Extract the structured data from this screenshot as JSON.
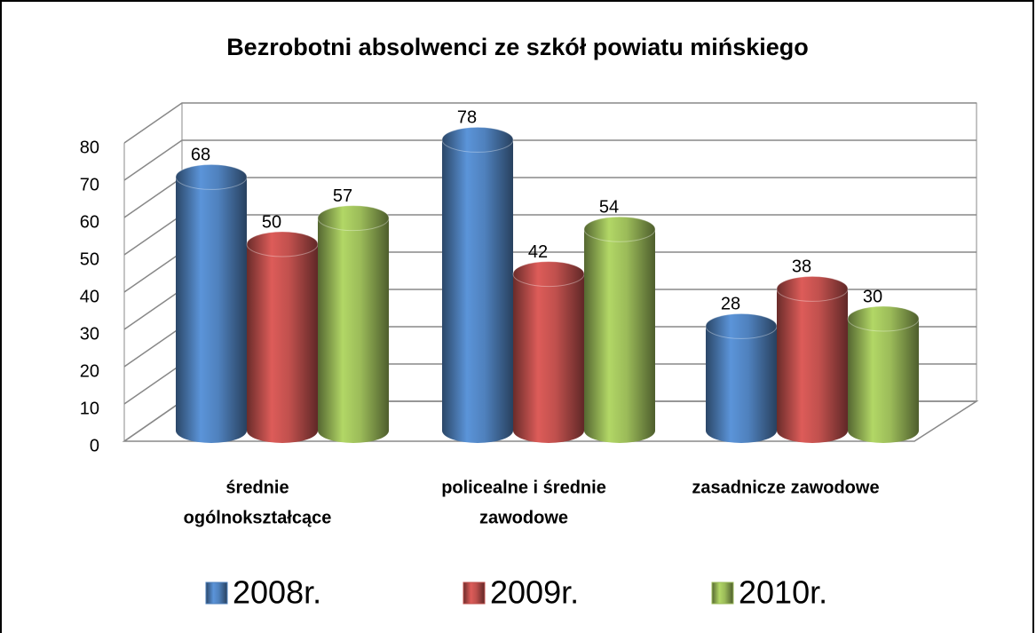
{
  "chart_data": {
    "type": "bar",
    "title": "Bezrobotni absolwenci ze szkół powiatu mińskiego",
    "categories": [
      [
        "średnie",
        "ogólnokształcące"
      ],
      [
        "policealne i średnie",
        "zawodowe"
      ],
      [
        "zasadnicze zawodowe"
      ]
    ],
    "series": [
      {
        "name": "2008r.",
        "color": "#4f81bd",
        "values": [
          68,
          78,
          28
        ]
      },
      {
        "name": "2009r.",
        "color": "#c0504d",
        "values": [
          50,
          42,
          38
        ]
      },
      {
        "name": "2010r.",
        "color": "#9bbb59",
        "values": [
          57,
          54,
          30
        ]
      }
    ],
    "ylim": [
      0,
      80
    ],
    "yticks": [
      0,
      10,
      20,
      30,
      40,
      50,
      60,
      70,
      80
    ],
    "grid": true,
    "legend": "bottom"
  }
}
